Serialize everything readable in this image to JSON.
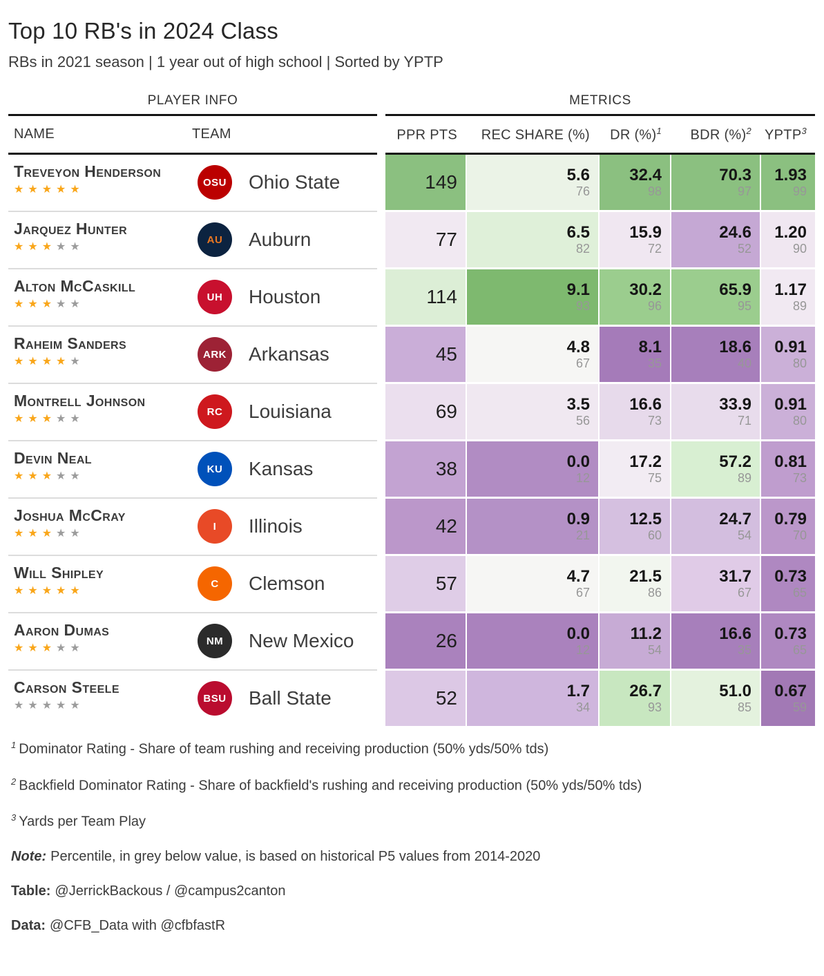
{
  "chart_data": {
    "type": "table",
    "title": "Top 10 RB's in 2024 Class",
    "subtitle": "RBs in 2021 season | 1 year out of high school | Sorted by YPTP",
    "spanners": {
      "player_info": "PLAYER INFO",
      "metrics": "METRICS"
    },
    "columns": {
      "name": "NAME",
      "team": "TEAM",
      "metrics": [
        {
          "label": "PPR PTS",
          "sup": ""
        },
        {
          "label": "REC SHARE (%)",
          "sup": ""
        },
        {
          "label": "DR (%)",
          "sup": "1"
        },
        {
          "label": "BDR (%)",
          "sup": "2"
        },
        {
          "label": "YPTP",
          "sup": "3"
        }
      ]
    },
    "rows": [
      {
        "name": "Treveyon Henderson",
        "stars": 5,
        "team": {
          "name": "Ohio State",
          "abbr": "OSU",
          "bg": "#BB0000",
          "fg": "#FFFFFF"
        },
        "ppr": {
          "value": "149",
          "bg": "#8BC080"
        },
        "rec": {
          "value": "5.6",
          "pct": "76",
          "bg": "#EBF3E7"
        },
        "dr": {
          "value": "32.4",
          "pct": "98",
          "bg": "#8BC080"
        },
        "bdr": {
          "value": "70.3",
          "pct": "97",
          "bg": "#8BC080"
        },
        "yptp": {
          "value": "1.93",
          "pct": "99",
          "bg": "#8BC080"
        }
      },
      {
        "name": "Jarquez Hunter",
        "stars": 3,
        "team": {
          "name": "Auburn",
          "abbr": "AU",
          "bg": "#0C2340",
          "fg": "#E87722"
        },
        "ppr": {
          "value": "77",
          "bg": "#F1E9F2"
        },
        "rec": {
          "value": "6.5",
          "pct": "82",
          "bg": "#DFF0D9"
        },
        "dr": {
          "value": "15.9",
          "pct": "72",
          "bg": "#F0E7F1"
        },
        "bdr": {
          "value": "24.6",
          "pct": "52",
          "bg": "#C5A8D4"
        },
        "yptp": {
          "value": "1.20",
          "pct": "90",
          "bg": "#F0E7F1"
        }
      },
      {
        "name": "Alton McCaskill",
        "stars": 3,
        "team": {
          "name": "Houston",
          "abbr": "UH",
          "bg": "#C8102E",
          "fg": "#FFFFFF"
        },
        "ppr": {
          "value": "114",
          "bg": "#DCEED6"
        },
        "rec": {
          "value": "9.1",
          "pct": "93",
          "bg": "#7EB96F"
        },
        "dr": {
          "value": "30.2",
          "pct": "96",
          "bg": "#9BCD8E"
        },
        "bdr": {
          "value": "65.9",
          "pct": "95",
          "bg": "#9BCD8E"
        },
        "yptp": {
          "value": "1.17",
          "pct": "89",
          "bg": "#F1E9F2"
        }
      },
      {
        "name": "Raheim Sanders",
        "stars": 4,
        "team": {
          "name": "Arkansas",
          "abbr": "ARK",
          "bg": "#9D2235",
          "fg": "#FFFFFF"
        },
        "ppr": {
          "value": "45",
          "bg": "#CAAED8"
        },
        "rec": {
          "value": "4.8",
          "pct": "67",
          "bg": "#F6F6F4"
        },
        "dr": {
          "value": "8.1",
          "pct": "35",
          "bg": "#A57BB9"
        },
        "bdr": {
          "value": "18.6",
          "pct": "40",
          "bg": "#A77FBB"
        },
        "yptp": {
          "value": "0.91",
          "pct": "80",
          "bg": "#CBB0D8"
        }
      },
      {
        "name": "Montrell Johnson",
        "stars": 3,
        "team": {
          "name": "Louisiana",
          "abbr": "RC",
          "bg": "#CE181E",
          "fg": "#FFFFFF"
        },
        "ppr": {
          "value": "69",
          "bg": "#EBDFEE"
        },
        "rec": {
          "value": "3.5",
          "pct": "56",
          "bg": "#F0E8F1"
        },
        "dr": {
          "value": "16.6",
          "pct": "73",
          "bg": "#E7DAEB"
        },
        "bdr": {
          "value": "33.9",
          "pct": "71",
          "bg": "#E8DCEC"
        },
        "yptp": {
          "value": "0.91",
          "pct": "80",
          "bg": "#CBB0D8"
        }
      },
      {
        "name": "Devin Neal",
        "stars": 3,
        "team": {
          "name": "Kansas",
          "abbr": "KU",
          "bg": "#0051BA",
          "fg": "#FFFFFF"
        },
        "ppr": {
          "value": "38",
          "bg": "#C3A3D2"
        },
        "rec": {
          "value": "0.0",
          "pct": "12",
          "bg": "#B18CC3"
        },
        "dr": {
          "value": "17.2",
          "pct": "75",
          "bg": "#F2ECF3"
        },
        "bdr": {
          "value": "57.2",
          "pct": "89",
          "bg": "#D8EFD2"
        },
        "yptp": {
          "value": "0.81",
          "pct": "73",
          "bg": "#BF9DCE"
        }
      },
      {
        "name": "Joshua McCray",
        "stars": 3,
        "team": {
          "name": "Illinois",
          "abbr": "I",
          "bg": "#E84A27",
          "fg": "#FFFFFF"
        },
        "ppr": {
          "value": "42",
          "bg": "#BB97CA"
        },
        "rec": {
          "value": "0.9",
          "pct": "21",
          "bg": "#B491C6"
        },
        "dr": {
          "value": "12.5",
          "pct": "60",
          "bg": "#D5C0E0"
        },
        "bdr": {
          "value": "24.7",
          "pct": "54",
          "bg": "#D3BEDF"
        },
        "yptp": {
          "value": "0.79",
          "pct": "70",
          "bg": "#BB97CA"
        }
      },
      {
        "name": "Will Shipley",
        "stars": 5,
        "team": {
          "name": "Clemson",
          "abbr": "C",
          "bg": "#F56600",
          "fg": "#FFFFFF"
        },
        "ppr": {
          "value": "57",
          "bg": "#DFCDE7"
        },
        "rec": {
          "value": "4.7",
          "pct": "67",
          "bg": "#F6F6F4"
        },
        "dr": {
          "value": "21.5",
          "pct": "86",
          "bg": "#F2F6EF"
        },
        "bdr": {
          "value": "31.7",
          "pct": "67",
          "bg": "#E0CBE7"
        },
        "yptp": {
          "value": "0.73",
          "pct": "65",
          "bg": "#AF88C1"
        }
      },
      {
        "name": "Aaron Dumas",
        "stars": 3,
        "team": {
          "name": "New Mexico",
          "abbr": "NM",
          "bg": "#2B2B2B",
          "fg": "#FFFFFF"
        },
        "ppr": {
          "value": "26",
          "bg": "#AA82BD"
        },
        "rec": {
          "value": "0.0",
          "pct": "12",
          "bg": "#AA82BD"
        },
        "dr": {
          "value": "11.2",
          "pct": "54",
          "bg": "#C7ABD5"
        },
        "bdr": {
          "value": "16.6",
          "pct": "35",
          "bg": "#A77FBB"
        },
        "yptp": {
          "value": "0.73",
          "pct": "65",
          "bg": "#AF88C1"
        }
      },
      {
        "name": "Carson Steele",
        "stars": 0,
        "team": {
          "name": "Ball State",
          "abbr": "BSU",
          "bg": "#BA0C2F",
          "fg": "#FFFFFF"
        },
        "ppr": {
          "value": "52",
          "bg": "#DCC8E5"
        },
        "rec": {
          "value": "1.7",
          "pct": "34",
          "bg": "#CFB6DD"
        },
        "dr": {
          "value": "26.7",
          "pct": "93",
          "bg": "#C8E7C0"
        },
        "bdr": {
          "value": "51.0",
          "pct": "85",
          "bg": "#E4F2DE"
        },
        "yptp": {
          "value": "0.67",
          "pct": "59",
          "bg": "#A279B5"
        }
      }
    ]
  },
  "footnotes": [
    {
      "sup": "1",
      "text": "Dominator Rating - Share of team rushing and receiving production (50% yds/50% tds)"
    },
    {
      "sup": "2",
      "text": "Backfield Dominator Rating - Share of backfield's rushing and receiving production (50% yds/50% tds)"
    },
    {
      "sup": "3",
      "text": "Yards per Team Play"
    }
  ],
  "credits": [
    {
      "prefix": "Note:",
      "italic": true,
      "text": "Percentile, in grey below value, is based on historical P5 values from 2014-2020"
    },
    {
      "prefix": "Table:",
      "italic": false,
      "text": "@JerrickBackous / @campus2canton"
    },
    {
      "prefix": "Data:",
      "italic": false,
      "text": "@CFB_Data with @cfbfastR"
    }
  ],
  "palette": {
    "star_filled": "#F9A61A",
    "star_empty": "#9C9C9C",
    "percentile_text": "#979797",
    "rule_black": "#141414",
    "row_separator": "#DCDCDC",
    "heat_low": "#A279B5",
    "heat_mid": "#F6F6F4",
    "heat_high": "#7EB96F"
  }
}
